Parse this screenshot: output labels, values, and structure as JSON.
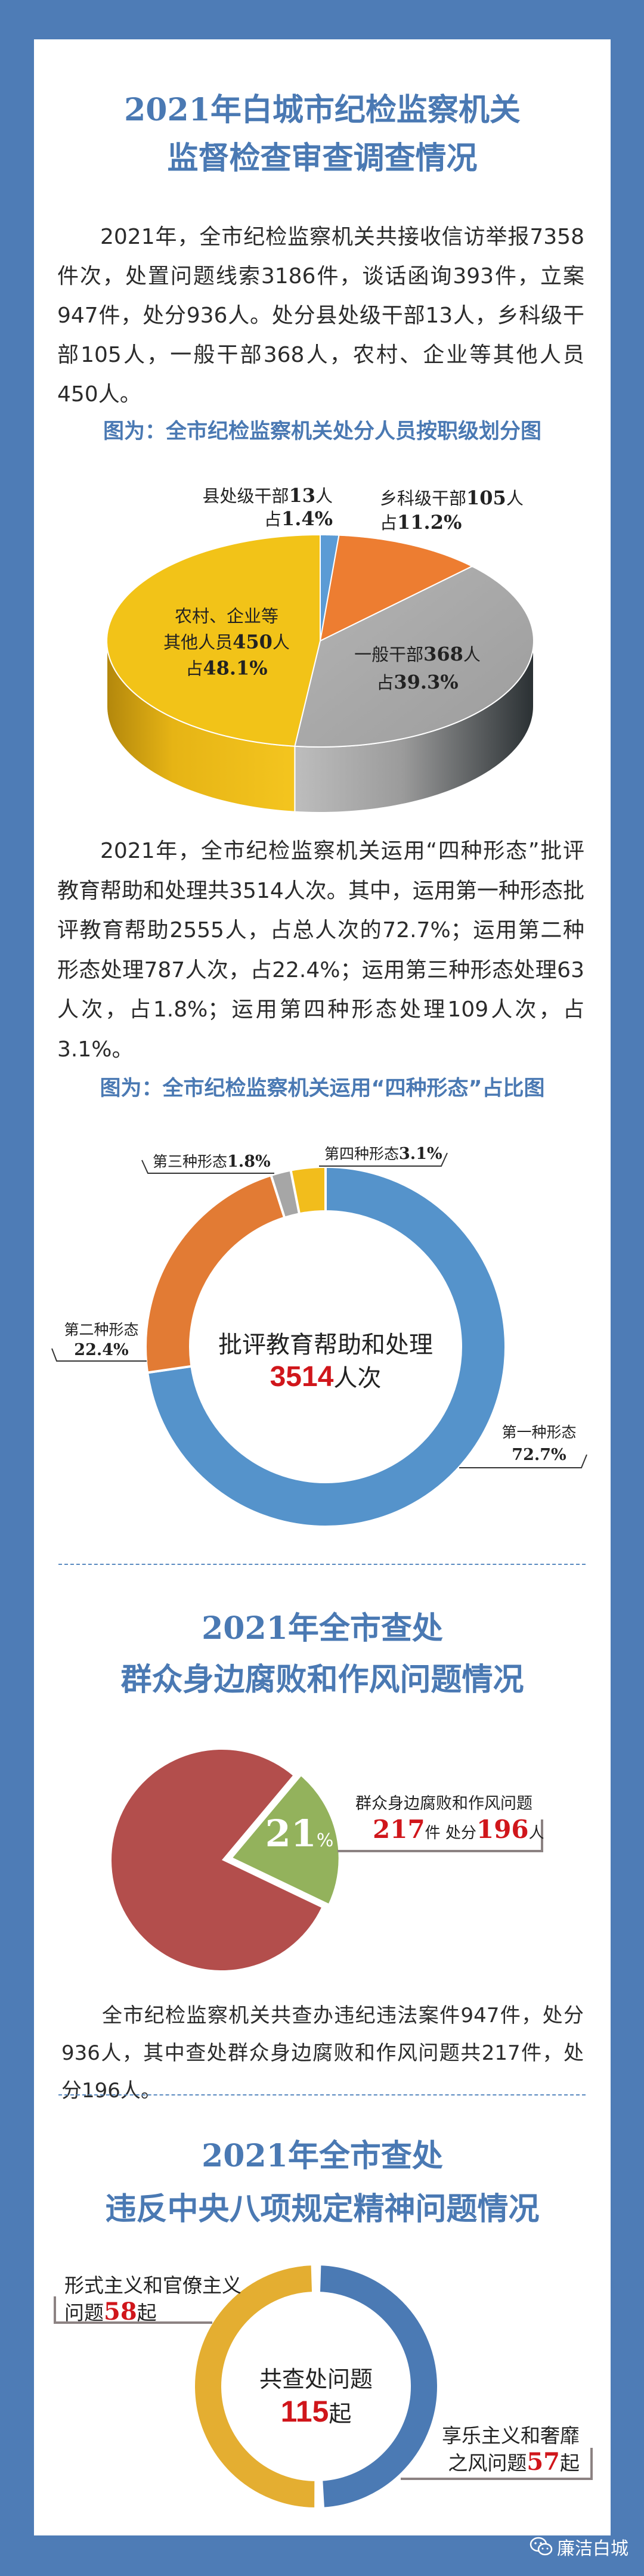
{
  "page": {
    "background_color": "#4e7cb6",
    "title_color": "#4a79b3",
    "highlight_color": "#d0161b"
  },
  "section1": {
    "title_line1": "2021年白城市纪检监察机关",
    "title_line2": "监督检查审查调查情况",
    "paragraph1": "2021年，全市纪检监察机关共接收信访举报7358件次，处置问题线索3186件，谈话函询393件，立案947件，处分936人。处分县处级干部13人，乡科级干部105人，一般干部368人，农村、企业等其他人员450人。",
    "caption1": "图为：全市纪检监察机关处分人员按职级划分图",
    "paragraph2": "2021年，全市纪检监察机关运用“四种形态”批评教育帮助和处理共3514人次。其中，运用第一种形态批评教育帮助2555人，占总人次的72.7%；运用第二种形态处理787人次，占22.4%；运用第三种形态处理63人次，占1.8%；运用第四种形态处理109人次，占3.1%。",
    "caption2": "图为：全市纪检监察机关运用“四种形态”占比图"
  },
  "section2": {
    "title_line1": "2021年全市查处",
    "title_line2": "群众身边腐败和作风问题情况",
    "paragraph": "全市纪检监察机关共查办违纪违法案件947件，处分936人，其中查处群众身边腐败和作风问题共217件，处分196人。"
  },
  "section3": {
    "title_line1": "2021年全市查处",
    "title_line2": "违反中央八项规定精神问题情况"
  },
  "footer": {
    "account_name": "廉洁白城",
    "icon": "wechat-icon"
  },
  "chart_data": [
    {
      "type": "pie",
      "style": "3d",
      "percent_prefix": "占",
      "slices": [
        {
          "name_lines": [
            "县处级干部"
          ],
          "value": 13,
          "unit": "人",
          "percent": 1.4,
          "percent_label": "1.4%",
          "color": "#5b9bd5"
        },
        {
          "name_lines": [
            "乡科级干部"
          ],
          "value": 105,
          "unit": "人",
          "percent": 11.2,
          "percent_label": "11.2%",
          "color": "#ed7d31"
        },
        {
          "name_lines": [
            "一般干部"
          ],
          "value": 368,
          "unit": "人",
          "percent": 39.3,
          "percent_label": "39.3%",
          "color": "#a9a9a9"
        },
        {
          "name_lines": [
            "农村、企业等",
            "其他人员"
          ],
          "value": 450,
          "unit": "人",
          "percent": 48.1,
          "percent_label": "48.1%",
          "color": "#f2c318"
        }
      ]
    },
    {
      "type": "pie",
      "style": "donut",
      "center_label": "批评教育帮助和处理",
      "center_value": "3514",
      "center_unit": "人次",
      "slices": [
        {
          "name": "第一种形态",
          "value": 2555,
          "percent": 72.7,
          "percent_label": "72.7%",
          "color": "#5593cb"
        },
        {
          "name": "第二种形态",
          "value": 787,
          "percent": 22.4,
          "percent_label": "22.4%",
          "color": "#e27b34"
        },
        {
          "name": "第三种形态",
          "value": 63,
          "percent": 1.8,
          "percent_label": "1.8%",
          "color": "#a6a6a6"
        },
        {
          "name": "第四种形态",
          "value": 109,
          "percent": 3.1,
          "percent_label": "3.1%",
          "color": "#f2bd1c"
        }
      ]
    },
    {
      "type": "pie",
      "style": "exploded",
      "slices": [
        {
          "name": "群众身边腐败和作风问题",
          "percent": 21,
          "percent_value": "21",
          "percent_sign": "%",
          "color": "#93b25c",
          "cases": "217",
          "cases_unit": "件",
          "punished_label": "处分",
          "punished": "196",
          "punished_unit": "人"
        },
        {
          "percent": 79,
          "color": "#b34e4c"
        }
      ]
    },
    {
      "type": "pie",
      "style": "donut",
      "center_label": "共查处问题",
      "center_value": "115",
      "center_unit": "起",
      "slices": [
        {
          "name_lines": [
            "形式主义和官僚主义",
            "问题"
          ],
          "value": 58,
          "unit": "起",
          "color": "#e4ae31"
        },
        {
          "name_lines": [
            "享乐主义和奢靡",
            "之风问题"
          ],
          "value": 57,
          "unit": "起",
          "color": "#4b7ab4"
        }
      ]
    }
  ]
}
